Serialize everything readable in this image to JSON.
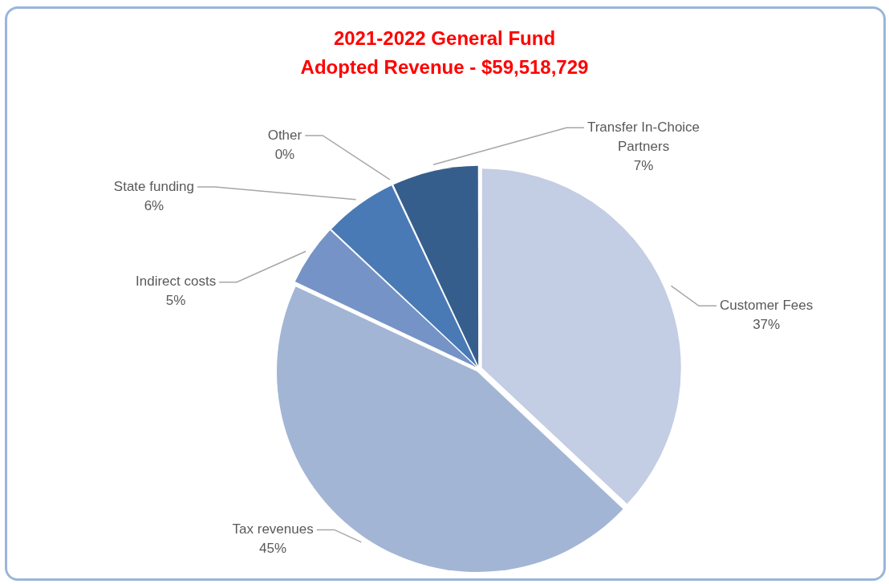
{
  "chart_data": {
    "type": "pie",
    "title": "2021-2022 General Fund",
    "subtitle": "Adopted Revenue - $59,518,729",
    "categories": [
      "Customer Fees",
      "Tax revenues",
      "Indirect costs",
      "State funding",
      "Other",
      "Transfer In-Choice Partners"
    ],
    "values": [
      37,
      45,
      5,
      6,
      0,
      7
    ],
    "value_labels": [
      "37%",
      "45%",
      "5%",
      "6%",
      "0%",
      "7%"
    ],
    "colors": [
      "#c3cde3",
      "#a3b5d5",
      "#7593c6",
      "#4a7ab5",
      "#2f4f7f",
      "#365e8d"
    ],
    "legend": false
  }
}
